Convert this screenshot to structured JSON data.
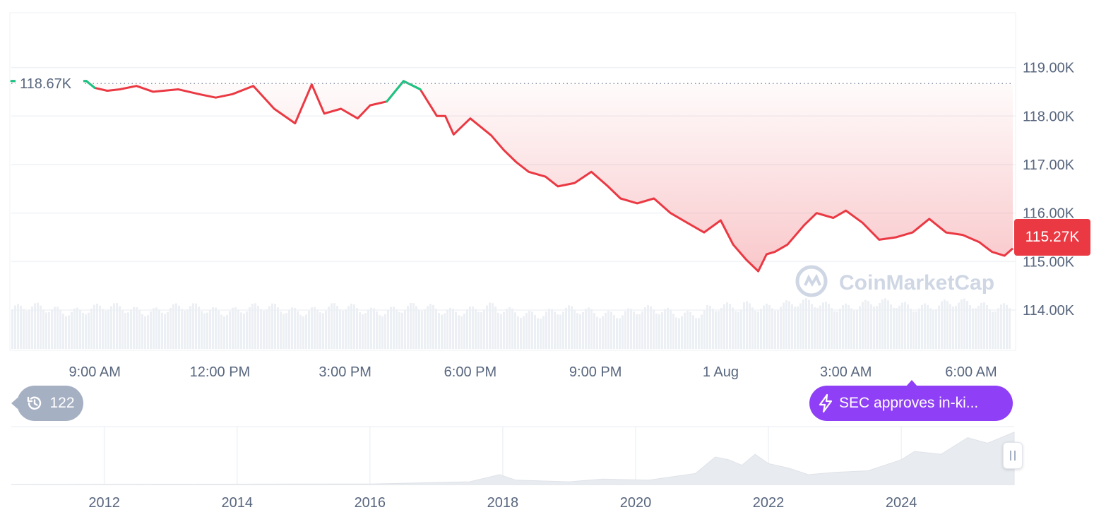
{
  "chart_data": {
    "type": "line",
    "title": "",
    "xlabel": "",
    "ylabel": "",
    "ylim": [
      113.2,
      120.1
    ],
    "y_ticks": [
      {
        "value": 119.0,
        "label": "119.00K"
      },
      {
        "value": 118.0,
        "label": "118.00K"
      },
      {
        "value": 117.0,
        "label": "117.00K"
      },
      {
        "value": 116.0,
        "label": "116.00K"
      },
      {
        "value": 115.0,
        "label": "115.00K"
      },
      {
        "value": 114.0,
        "label": "114.00K"
      }
    ],
    "x_ticks": [
      "9:00 AM",
      "12:00 PM",
      "3:00 PM",
      "6:00 PM",
      "9:00 PM",
      "1 Aug",
      "3:00 AM",
      "6:00 AM"
    ],
    "x_tick_hours": [
      9,
      12,
      15,
      18,
      21,
      24,
      27,
      30
    ],
    "x_range_hours": [
      7.0,
      31.0
    ],
    "reference_price": 118.67,
    "reference_label": "118.67K",
    "current_price_label": "115.27K",
    "series": [
      {
        "color_above": "#16c784",
        "color_below": "#ea3943",
        "x_hours": [
          7.0,
          8.8,
          9.0,
          9.3,
          9.6,
          10.0,
          10.4,
          11.0,
          11.5,
          11.9,
          12.3,
          12.8,
          13.3,
          13.8,
          14.2,
          14.5,
          14.9,
          15.3,
          15.6,
          16.0,
          16.4,
          16.8,
          17.2,
          17.4,
          17.6,
          18.0,
          18.5,
          18.8,
          19.1,
          19.4,
          19.8,
          20.1,
          20.5,
          20.9,
          21.3,
          21.6,
          22.0,
          22.4,
          22.8,
          23.2,
          23.6,
          24.0,
          24.3,
          24.6,
          24.9,
          25.1,
          25.3,
          25.6,
          26.0,
          26.3,
          26.7,
          27.0,
          27.4,
          27.8,
          28.2,
          28.6,
          29.0,
          29.4,
          29.8,
          30.2,
          30.5,
          30.8,
          31.0
        ],
        "y": [
          118.72,
          118.72,
          118.58,
          118.52,
          118.55,
          118.62,
          118.5,
          118.55,
          118.45,
          118.38,
          118.45,
          118.62,
          118.15,
          117.85,
          118.65,
          118.05,
          118.15,
          117.95,
          118.22,
          118.3,
          118.72,
          118.55,
          118.0,
          118.0,
          117.62,
          117.95,
          117.6,
          117.3,
          117.05,
          116.85,
          116.75,
          116.55,
          116.62,
          116.85,
          116.55,
          116.3,
          116.2,
          116.3,
          116.0,
          115.8,
          115.6,
          115.85,
          115.35,
          115.05,
          114.8,
          115.15,
          115.2,
          115.35,
          115.75,
          116.0,
          115.9,
          116.05,
          115.8,
          115.45,
          115.5,
          115.6,
          115.88,
          115.6,
          115.55,
          115.4,
          115.2,
          115.12,
          115.27
        ]
      }
    ],
    "navigator": {
      "type": "area",
      "x_ticks": [
        "2012",
        "2014",
        "2016",
        "2018",
        "2020",
        "2022",
        "2024"
      ],
      "x_tick_years": [
        2012,
        2014,
        2016,
        2018,
        2020,
        2022,
        2024
      ],
      "x_range_years": [
        2010.6,
        2025.7
      ],
      "years": [
        2010.6,
        2013.0,
        2016.0,
        2017.5,
        2017.95,
        2018.2,
        2019.0,
        2019.5,
        2020.2,
        2020.9,
        2021.2,
        2021.4,
        2021.6,
        2021.8,
        2022.0,
        2022.3,
        2022.6,
        2023.0,
        2023.5,
        2024.0,
        2024.2,
        2024.6,
        2025.0,
        2025.3,
        2025.7
      ],
      "values": [
        0.0,
        0.005,
        0.01,
        0.05,
        0.18,
        0.08,
        0.05,
        0.1,
        0.08,
        0.2,
        0.5,
        0.45,
        0.35,
        0.55,
        0.38,
        0.3,
        0.18,
        0.22,
        0.25,
        0.45,
        0.6,
        0.55,
        0.85,
        0.75,
        0.95
      ]
    }
  },
  "watermark": "CoinMarketCap",
  "history": {
    "icon": "history-clock-icon",
    "count": "122"
  },
  "news": {
    "icon": "lightning-icon",
    "text": "SEC approves in-ki..."
  },
  "colors": {
    "up": "#16c784",
    "down": "#ea3943",
    "news": "#8f3ff5",
    "muted": "#a6b0c3",
    "grid": "#eff2f5",
    "tick": "#58667e"
  }
}
